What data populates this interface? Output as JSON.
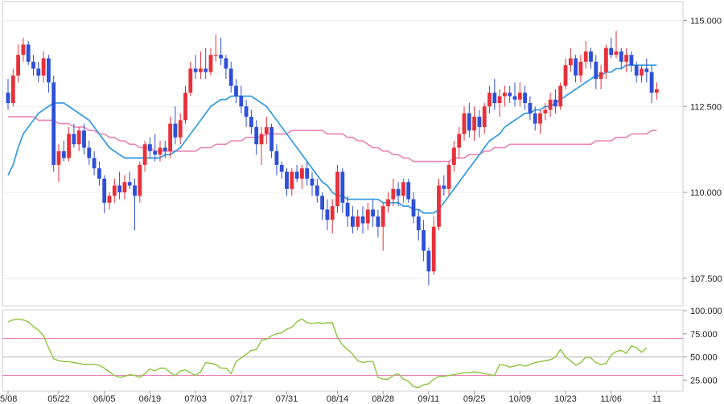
{
  "chart_data": [
    {
      "type": "candlestick",
      "y_ticks": [
        "115.000",
        "112.500",
        "110.000",
        "107.500"
      ],
      "y_tick_values": [
        115.0,
        112.5,
        110.0,
        107.5
      ],
      "ylim": [
        106.7,
        115.55
      ],
      "x_ticks": [
        "5/08",
        "05/22",
        "06/05",
        "06/19",
        "07/03",
        "07/17",
        "07/31",
        "08/14",
        "08/28",
        "09/11",
        "09/25",
        "10/09",
        "10/23",
        "11/06",
        "11"
      ],
      "x_tick_index": [
        0,
        10,
        19,
        28,
        37,
        46,
        55,
        65,
        74,
        83,
        92,
        101,
        110,
        119,
        128
      ],
      "candles": [
        [
          112.9,
          113.3,
          112.4,
          112.6
        ],
        [
          112.6,
          113.6,
          112.5,
          113.4
        ],
        [
          113.4,
          114.3,
          113.2,
          114.0
        ],
        [
          114.0,
          114.5,
          113.8,
          114.3
        ],
        [
          114.3,
          114.4,
          113.7,
          113.8
        ],
        [
          113.8,
          114.0,
          113.4,
          113.6
        ],
        [
          113.6,
          113.8,
          113.2,
          113.4
        ],
        [
          113.4,
          114.1,
          113.2,
          113.9
        ],
        [
          113.9,
          114.0,
          112.9,
          113.2
        ],
        [
          113.2,
          113.4,
          110.6,
          110.8
        ],
        [
          110.8,
          111.4,
          110.3,
          111.2
        ],
        [
          111.2,
          111.5,
          110.9,
          111.0
        ],
        [
          111.0,
          111.9,
          110.9,
          111.7
        ],
        [
          111.7,
          112.0,
          111.3,
          111.4
        ],
        [
          111.4,
          111.9,
          111.2,
          111.8
        ],
        [
          111.8,
          112.0,
          111.1,
          111.3
        ],
        [
          111.3,
          111.5,
          110.8,
          111.0
        ],
        [
          111.0,
          111.2,
          110.5,
          110.7
        ],
        [
          110.7,
          110.9,
          110.2,
          110.4
        ],
        [
          110.4,
          110.5,
          109.4,
          109.7
        ],
        [
          109.7,
          110.0,
          109.5,
          109.9
        ],
        [
          109.9,
          110.4,
          109.7,
          110.2
        ],
        [
          110.2,
          110.6,
          109.8,
          110.0
        ],
        [
          110.0,
          110.5,
          109.8,
          110.3
        ],
        [
          110.3,
          110.6,
          110.1,
          110.2
        ],
        [
          110.2,
          110.4,
          108.9,
          109.9
        ],
        [
          109.9,
          110.9,
          109.7,
          110.8
        ],
        [
          110.8,
          111.5,
          110.6,
          111.4
        ],
        [
          111.4,
          111.6,
          111.0,
          111.2
        ],
        [
          111.2,
          111.7,
          110.9,
          111.1
        ],
        [
          111.1,
          111.5,
          110.9,
          111.3
        ],
        [
          111.3,
          111.5,
          111.0,
          111.2
        ],
        [
          111.2,
          112.2,
          111.0,
          112.0
        ],
        [
          112.0,
          112.5,
          111.4,
          111.6
        ],
        [
          111.6,
          112.3,
          111.4,
          112.1
        ],
        [
          112.1,
          113.1,
          112.0,
          112.9
        ],
        [
          112.9,
          113.8,
          112.8,
          113.6
        ],
        [
          113.6,
          114.0,
          113.3,
          113.5
        ],
        [
          113.5,
          114.1,
          113.3,
          113.6
        ],
        [
          113.6,
          114.2,
          113.3,
          113.5
        ],
        [
          113.5,
          114.2,
          113.4,
          114.0
        ],
        [
          114.0,
          114.6,
          113.8,
          114.0
        ],
        [
          114.0,
          114.5,
          113.7,
          113.9
        ],
        [
          113.9,
          114.0,
          113.3,
          113.6
        ],
        [
          113.6,
          113.8,
          112.9,
          113.1
        ],
        [
          113.1,
          113.3,
          112.6,
          112.8
        ],
        [
          112.8,
          113.1,
          112.3,
          112.5
        ],
        [
          112.5,
          112.7,
          111.9,
          112.2
        ],
        [
          112.2,
          112.4,
          111.7,
          111.9
        ],
        [
          111.9,
          112.1,
          111.1,
          111.4
        ],
        [
          111.4,
          111.9,
          110.8,
          111.7
        ],
        [
          111.7,
          112.2,
          111.4,
          111.9
        ],
        [
          111.9,
          112.0,
          111.0,
          111.2
        ],
        [
          111.2,
          111.4,
          110.5,
          110.8
        ],
        [
          110.8,
          110.9,
          110.4,
          110.6
        ],
        [
          110.6,
          110.7,
          109.9,
          110.1
        ],
        [
          110.1,
          110.7,
          109.9,
          110.6
        ],
        [
          110.6,
          110.8,
          110.3,
          110.4
        ],
        [
          110.4,
          110.8,
          110.1,
          110.7
        ],
        [
          110.7,
          110.9,
          110.2,
          110.4
        ],
        [
          110.4,
          110.6,
          109.9,
          110.2
        ],
        [
          110.2,
          110.4,
          109.7,
          109.9
        ],
        [
          109.9,
          110.0,
          109.2,
          109.5
        ],
        [
          109.5,
          109.8,
          108.9,
          109.2
        ],
        [
          109.2,
          109.8,
          108.8,
          109.6
        ],
        [
          109.6,
          110.8,
          109.4,
          110.6
        ],
        [
          110.6,
          110.7,
          109.4,
          109.7
        ],
        [
          109.7,
          109.9,
          109.0,
          109.3
        ],
        [
          109.3,
          109.6,
          108.8,
          109.0
        ],
        [
          109.0,
          109.5,
          108.9,
          109.3
        ],
        [
          109.3,
          109.6,
          108.8,
          109.1
        ],
        [
          109.1,
          109.7,
          108.9,
          109.5
        ],
        [
          109.5,
          109.8,
          109.0,
          109.3
        ],
        [
          109.3,
          109.5,
          108.7,
          109.0
        ],
        [
          109.0,
          109.7,
          108.3,
          109.6
        ],
        [
          109.6,
          110.0,
          109.4,
          109.8
        ],
        [
          109.8,
          110.4,
          109.6,
          110.1
        ],
        [
          110.1,
          110.3,
          109.6,
          109.9
        ],
        [
          109.9,
          110.4,
          109.7,
          110.3
        ],
        [
          110.3,
          110.4,
          109.7,
          109.8
        ],
        [
          109.8,
          110.0,
          109.1,
          109.3
        ],
        [
          109.3,
          109.5,
          108.6,
          108.9
        ],
        [
          108.9,
          109.2,
          108.0,
          108.3
        ],
        [
          108.3,
          108.4,
          107.3,
          107.7
        ],
        [
          107.7,
          109.3,
          107.6,
          109.0
        ],
        [
          109.0,
          110.4,
          108.9,
          110.2
        ],
        [
          110.2,
          110.5,
          109.9,
          110.1
        ],
        [
          110.1,
          110.9,
          109.9,
          110.8
        ],
        [
          110.8,
          111.5,
          110.6,
          111.3
        ],
        [
          111.3,
          111.9,
          111.0,
          111.7
        ],
        [
          111.7,
          112.5,
          111.5,
          112.3
        ],
        [
          112.3,
          112.6,
          111.6,
          111.8
        ],
        [
          111.8,
          112.5,
          111.5,
          112.2
        ],
        [
          112.2,
          112.4,
          111.6,
          111.9
        ],
        [
          111.9,
          112.6,
          111.7,
          112.5
        ],
        [
          112.5,
          113.1,
          112.3,
          112.9
        ],
        [
          112.9,
          113.3,
          112.4,
          112.6
        ],
        [
          112.6,
          113.0,
          112.2,
          112.8
        ],
        [
          112.8,
          113.1,
          112.5,
          112.9
        ],
        [
          112.9,
          113.1,
          112.6,
          112.8
        ],
        [
          112.8,
          113.2,
          112.5,
          112.7
        ],
        [
          112.7,
          113.2,
          112.5,
          112.9
        ],
        [
          112.9,
          113.1,
          112.4,
          112.6
        ],
        [
          112.6,
          112.8,
          112.1,
          112.3
        ],
        [
          112.3,
          112.5,
          111.8,
          112.0
        ],
        [
          112.0,
          112.4,
          111.7,
          112.3
        ],
        [
          112.3,
          112.6,
          112.1,
          112.4
        ],
        [
          112.4,
          112.9,
          112.2,
          112.7
        ],
        [
          112.7,
          113.0,
          112.3,
          112.5
        ],
        [
          112.5,
          113.2,
          112.4,
          113.1
        ],
        [
          113.1,
          113.9,
          113.0,
          113.7
        ],
        [
          113.7,
          114.2,
          113.5,
          113.9
        ],
        [
          113.9,
          114.0,
          113.2,
          113.4
        ],
        [
          113.4,
          114.0,
          113.2,
          113.8
        ],
        [
          113.8,
          114.4,
          113.6,
          114.1
        ],
        [
          114.1,
          114.2,
          113.6,
          113.8
        ],
        [
          113.8,
          114.0,
          113.0,
          113.3
        ],
        [
          113.3,
          113.7,
          113.0,
          113.5
        ],
        [
          113.5,
          114.3,
          113.3,
          114.2
        ],
        [
          114.2,
          114.5,
          113.9,
          114.0
        ],
        [
          114.0,
          114.7,
          113.9,
          114.1
        ],
        [
          114.1,
          114.2,
          113.6,
          113.8
        ],
        [
          113.8,
          114.2,
          113.5,
          114.0
        ],
        [
          114.0,
          114.1,
          113.5,
          113.7
        ],
        [
          113.7,
          113.8,
          113.2,
          113.4
        ],
        [
          113.4,
          113.7,
          113.2,
          113.6
        ],
        [
          113.6,
          113.9,
          113.2,
          113.5
        ],
        [
          113.5,
          113.7,
          112.6,
          112.9
        ],
        [
          112.9,
          113.2,
          112.7,
          113.0
        ]
      ],
      "series": [
        {
          "color": "#3a9ee0",
          "values": [
            110.5,
            110.8,
            111.3,
            111.7,
            111.9,
            112.1,
            112.3,
            112.4,
            112.5,
            112.6,
            112.6,
            112.6,
            112.5,
            112.4,
            112.3,
            112.2,
            112.1,
            111.9,
            111.7,
            111.5,
            111.3,
            111.2,
            111.1,
            111.0,
            111.0,
            111.0,
            111.0,
            111.0,
            111.0,
            111.0,
            111.0,
            111.1,
            111.1,
            111.2,
            111.3,
            111.5,
            111.7,
            111.9,
            112.1,
            112.3,
            112.5,
            112.6,
            112.7,
            112.7,
            112.8,
            112.8,
            112.8,
            112.8,
            112.8,
            112.7,
            112.6,
            112.5,
            112.3,
            112.1,
            111.9,
            111.7,
            111.5,
            111.3,
            111.1,
            110.9,
            110.7,
            110.5,
            110.3,
            110.2,
            110.0,
            109.9,
            109.9,
            109.8,
            109.8,
            109.8,
            109.8,
            109.8,
            109.8,
            109.8,
            109.7,
            109.7,
            109.7,
            109.7,
            109.6,
            109.6,
            109.5,
            109.5,
            109.4,
            109.4,
            109.4,
            109.5,
            109.7,
            109.9,
            110.1,
            110.3,
            110.5,
            110.7,
            110.9,
            111.1,
            111.3,
            111.5,
            111.6,
            111.7,
            111.9,
            112.0,
            112.1,
            112.2,
            112.3,
            112.3,
            112.4,
            112.4,
            112.5,
            112.5,
            112.6,
            112.7,
            112.8,
            112.9,
            113.0,
            113.1,
            113.2,
            113.3,
            113.4,
            113.4,
            113.5,
            113.5,
            113.6,
            113.6,
            113.7,
            113.7,
            113.7,
            113.7,
            113.7,
            113.7,
            113.7
          ]
        },
        {
          "color": "#e884b6",
          "values": [
            112.2,
            112.2,
            112.2,
            112.2,
            112.2,
            112.2,
            112.1,
            112.1,
            112.1,
            112.1,
            112.0,
            112.0,
            112.0,
            111.9,
            111.9,
            111.9,
            111.8,
            111.8,
            111.7,
            111.7,
            111.6,
            111.6,
            111.5,
            111.5,
            111.4,
            111.4,
            111.3,
            111.3,
            111.3,
            111.2,
            111.2,
            111.2,
            111.2,
            111.2,
            111.2,
            111.2,
            111.2,
            111.2,
            111.3,
            111.3,
            111.3,
            111.4,
            111.4,
            111.4,
            111.5,
            111.5,
            111.5,
            111.6,
            111.6,
            111.6,
            111.6,
            111.7,
            111.7,
            111.7,
            111.7,
            111.7,
            111.8,
            111.8,
            111.8,
            111.8,
            111.8,
            111.8,
            111.8,
            111.7,
            111.7,
            111.7,
            111.7,
            111.6,
            111.6,
            111.5,
            111.5,
            111.4,
            111.3,
            111.3,
            111.2,
            111.2,
            111.1,
            111.1,
            111.0,
            111.0,
            110.9,
            110.9,
            110.9,
            110.9,
            110.9,
            110.9,
            110.9,
            110.9,
            111.0,
            111.0,
            111.0,
            111.1,
            111.1,
            111.1,
            111.2,
            111.2,
            111.3,
            111.3,
            111.3,
            111.4,
            111.4,
            111.4,
            111.4,
            111.4,
            111.4,
            111.4,
            111.4,
            111.4,
            111.4,
            111.4,
            111.4,
            111.4,
            111.4,
            111.4,
            111.4,
            111.4,
            111.5,
            111.5,
            111.5,
            111.5,
            111.6,
            111.6,
            111.6,
            111.7,
            111.7,
            111.7,
            111.7,
            111.8,
            111.8
          ]
        }
      ],
      "up_color": "#e8303a",
      "down_color": "#2e4fd8"
    },
    {
      "type": "line",
      "y_ticks": [
        "100.000",
        "75.000",
        "50.000",
        "25.000"
      ],
      "y_tick_values": [
        100,
        75,
        50,
        25
      ],
      "ylim": [
        14,
        100
      ],
      "reference_lines": [
        70,
        50,
        30
      ],
      "reference_colors": [
        "#e884b6",
        "#bbbbbb",
        "#e884b6"
      ],
      "series": [
        {
          "color": "#8cc63f",
          "values": [
            88,
            90,
            91,
            90,
            88,
            83,
            79,
            73,
            60,
            48,
            46,
            45,
            45,
            44,
            43,
            42,
            42,
            42,
            41,
            38,
            34,
            30,
            28,
            29,
            31,
            30,
            28,
            32,
            37,
            35,
            38,
            38,
            33,
            30,
            35,
            36,
            33,
            30,
            34,
            44,
            43,
            42,
            38,
            38,
            32,
            45,
            49,
            53,
            57,
            58,
            68,
            69,
            73,
            75,
            76,
            80,
            82,
            88,
            91,
            87,
            86,
            87,
            86,
            87,
            87,
            71,
            63,
            58,
            53,
            46,
            44,
            45,
            45,
            28,
            26,
            26,
            30,
            32,
            26,
            24,
            18,
            17,
            20,
            21,
            26,
            29,
            29,
            30,
            31,
            32,
            33,
            33,
            34,
            33,
            32,
            31,
            30,
            42,
            41,
            39,
            40,
            42,
            40,
            42,
            44,
            45,
            46,
            47,
            50,
            58,
            50,
            46,
            41,
            44,
            50,
            49,
            44,
            42,
            43,
            52,
            56,
            57,
            54,
            62,
            60,
            55,
            60
          ]
        }
      ]
    }
  ]
}
